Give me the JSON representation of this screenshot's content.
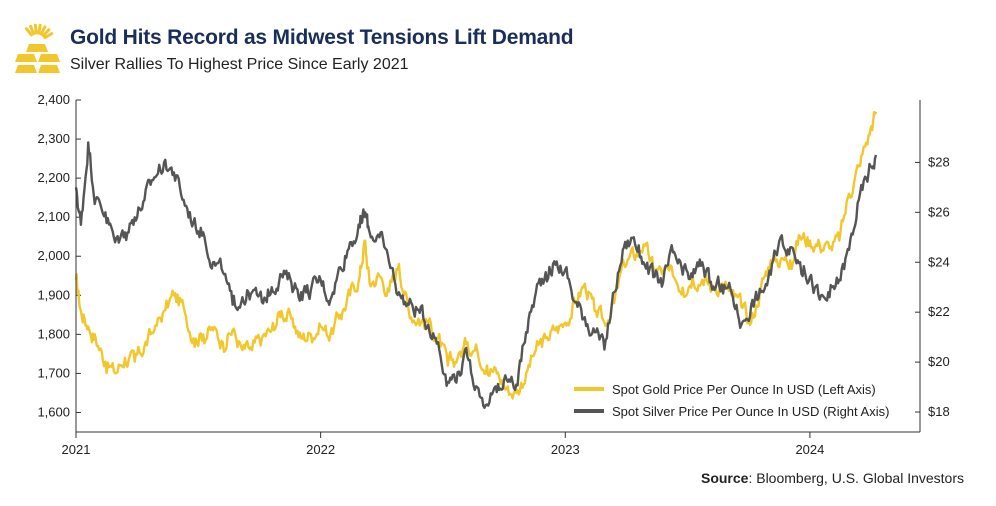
{
  "header": {
    "title": "Gold Hits Record as Midwest Tensions Lift Demand",
    "subtitle": "Silver Rallies To Highest Price Since Early 2021"
  },
  "source": {
    "label": "Source",
    "text": ": Bloomberg, U.S. Global Investors"
  },
  "colors": {
    "gold": "#f2c72e",
    "silver": "#555555",
    "logo": "#f2c72e",
    "title": "#1a2e5a"
  },
  "chart_data": {
    "type": "line",
    "xlabel": "",
    "x_ticks": [
      "2021",
      "2022",
      "2023",
      "2024"
    ],
    "left_axis": {
      "range": [
        1550,
        2400
      ],
      "ticks": [
        "1,600",
        "1,700",
        "1,800",
        "1,900",
        "2,000",
        "2,100",
        "2,200",
        "2,300",
        "2,400"
      ],
      "tick_values": [
        1600,
        1700,
        1800,
        1900,
        2000,
        2100,
        2200,
        2300,
        2400
      ]
    },
    "right_axis": {
      "range": [
        17.2,
        30.5
      ],
      "ticks": [
        "$18",
        "$20",
        "$22",
        "$24",
        "$26",
        "$28"
      ],
      "tick_values": [
        18,
        20,
        22,
        24,
        26,
        28
      ]
    },
    "x_range": [
      2021.0,
      2024.45
    ],
    "legend_position": "bottom-right",
    "series": [
      {
        "name": "Spot Gold Price Per Ounce In USD (Left Axis)",
        "axis": "left",
        "color": "#f2c72e",
        "x": [
          2021.0,
          2021.02,
          2021.05,
          2021.08,
          2021.12,
          2021.16,
          2021.2,
          2021.24,
          2021.28,
          2021.32,
          2021.36,
          2021.4,
          2021.44,
          2021.48,
          2021.52,
          2021.56,
          2021.6,
          2021.64,
          2021.68,
          2021.72,
          2021.76,
          2021.8,
          2021.84,
          2021.88,
          2021.92,
          2021.96,
          2022.0,
          2022.04,
          2022.08,
          2022.12,
          2022.16,
          2022.18,
          2022.2,
          2022.24,
          2022.28,
          2022.32,
          2022.36,
          2022.4,
          2022.44,
          2022.48,
          2022.52,
          2022.56,
          2022.6,
          2022.64,
          2022.68,
          2022.72,
          2022.76,
          2022.8,
          2022.84,
          2022.88,
          2022.92,
          2022.96,
          2023.0,
          2023.04,
          2023.08,
          2023.12,
          2023.16,
          2023.2,
          2023.24,
          2023.28,
          2023.32,
          2023.36,
          2023.4,
          2023.44,
          2023.48,
          2023.52,
          2023.56,
          2023.6,
          2023.64,
          2023.68,
          2023.72,
          2023.76,
          2023.8,
          2023.84,
          2023.88,
          2023.92,
          2023.96,
          2024.0,
          2024.04,
          2024.08,
          2024.12,
          2024.16,
          2024.2,
          2024.24,
          2024.27
        ],
        "values": [
          1940,
          1860,
          1820,
          1790,
          1730,
          1700,
          1740,
          1730,
          1770,
          1810,
          1860,
          1900,
          1870,
          1790,
          1800,
          1810,
          1780,
          1810,
          1760,
          1760,
          1790,
          1810,
          1860,
          1840,
          1790,
          1800,
          1820,
          1800,
          1850,
          1900,
          1950,
          2040,
          1930,
          1950,
          1910,
          1980,
          1860,
          1840,
          1830,
          1790,
          1720,
          1740,
          1780,
          1760,
          1720,
          1700,
          1660,
          1650,
          1700,
          1760,
          1790,
          1810,
          1830,
          1880,
          1930,
          1860,
          1830,
          1880,
          1980,
          2000,
          2030,
          1970,
          1960,
          1950,
          1920,
          1950,
          1940,
          1920,
          1930,
          1900,
          1870,
          1830,
          1920,
          1990,
          1990,
          1990,
          2050,
          2040,
          2030,
          2020,
          2040,
          2160,
          2230,
          2310,
          2370
        ]
      },
      {
        "name": "Spot Silver Price Per Ounce In USD (Right Axis)",
        "axis": "right",
        "color": "#555555",
        "x": [
          2021.0,
          2021.02,
          2021.05,
          2021.08,
          2021.12,
          2021.16,
          2021.2,
          2021.24,
          2021.28,
          2021.32,
          2021.36,
          2021.4,
          2021.44,
          2021.48,
          2021.52,
          2021.56,
          2021.6,
          2021.64,
          2021.68,
          2021.72,
          2021.76,
          2021.8,
          2021.84,
          2021.88,
          2021.92,
          2021.96,
          2022.0,
          2022.04,
          2022.08,
          2022.12,
          2022.16,
          2022.18,
          2022.2,
          2022.24,
          2022.28,
          2022.32,
          2022.36,
          2022.4,
          2022.44,
          2022.48,
          2022.52,
          2022.56,
          2022.6,
          2022.64,
          2022.68,
          2022.72,
          2022.76,
          2022.8,
          2022.84,
          2022.88,
          2022.92,
          2022.96,
          2023.0,
          2023.04,
          2023.08,
          2023.12,
          2023.16,
          2023.2,
          2023.24,
          2023.28,
          2023.32,
          2023.36,
          2023.4,
          2023.44,
          2023.48,
          2023.52,
          2023.56,
          2023.6,
          2023.64,
          2023.68,
          2023.72,
          2023.76,
          2023.8,
          2023.84,
          2023.88,
          2023.92,
          2023.96,
          2024.0,
          2024.04,
          2024.08,
          2024.12,
          2024.16,
          2024.2,
          2024.24,
          2024.27
        ],
        "values": [
          27.0,
          25.5,
          28.8,
          26.5,
          26.0,
          24.8,
          25.2,
          25.8,
          26.5,
          27.4,
          28.0,
          27.6,
          26.5,
          25.6,
          25.2,
          24.0,
          23.6,
          22.3,
          22.6,
          22.8,
          22.4,
          23.0,
          23.5,
          23.2,
          22.8,
          22.9,
          23.3,
          22.5,
          23.8,
          24.8,
          25.4,
          26.0,
          25.2,
          25.0,
          24.0,
          22.8,
          22.3,
          22.1,
          21.5,
          20.8,
          19.2,
          19.6,
          20.2,
          19.0,
          18.3,
          18.8,
          19.3,
          19.1,
          21.2,
          22.8,
          23.6,
          23.9,
          23.7,
          22.4,
          21.8,
          21.2,
          20.5,
          22.8,
          24.6,
          25.0,
          24.0,
          23.4,
          23.2,
          24.4,
          23.5,
          23.4,
          24.0,
          22.9,
          23.1,
          22.8,
          21.5,
          22.3,
          22.8,
          23.5,
          25.0,
          24.6,
          24.0,
          23.4,
          22.5,
          22.6,
          23.3,
          24.5,
          26.5,
          27.6,
          28.3
        ]
      }
    ]
  }
}
